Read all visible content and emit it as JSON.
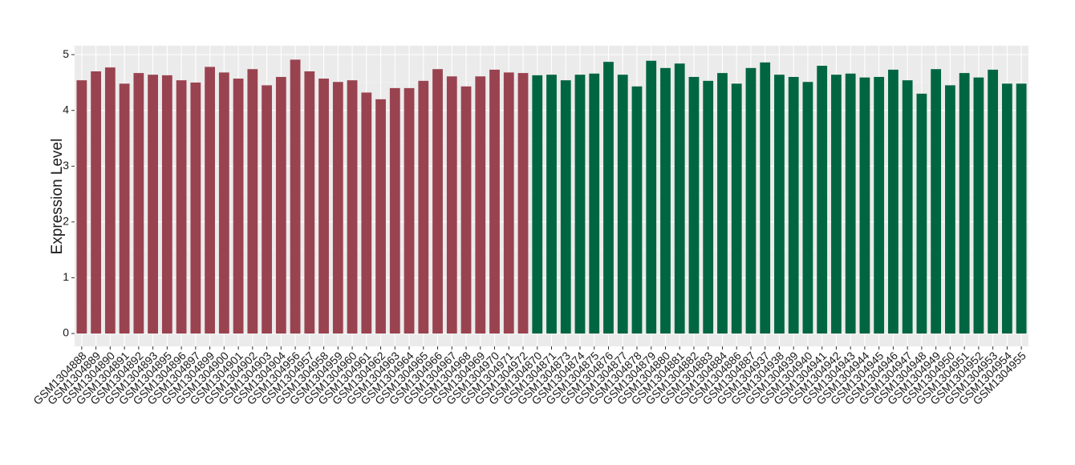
{
  "chart_data": {
    "type": "bar",
    "y_label": "Expression Level",
    "categories": [
      "GSM1304888",
      "GSM1304889",
      "GSM1304890",
      "GSM1304891",
      "GSM1304892",
      "GSM1304893",
      "GSM1304895",
      "GSM1304896",
      "GSM1304897",
      "GSM1304899",
      "GSM1304900",
      "GSM1304901",
      "GSM1304902",
      "GSM1304903",
      "GSM1304904",
      "GSM1304956",
      "GSM1304957",
      "GSM1304958",
      "GSM1304959",
      "GSM1304960",
      "GSM1304961",
      "GSM1304962",
      "GSM1304963",
      "GSM1304964",
      "GSM1304965",
      "GSM1304966",
      "GSM1304967",
      "GSM1304968",
      "GSM1304969",
      "GSM1304970",
      "GSM1304971",
      "GSM1304972",
      "GSM1304870",
      "GSM1304871",
      "GSM1304873",
      "GSM1304874",
      "GSM1304875",
      "GSM1304876",
      "GSM1304877",
      "GSM1304878",
      "GSM1304879",
      "GSM1304880",
      "GSM1304881",
      "GSM1304882",
      "GSM1304883",
      "GSM1304884",
      "GSM1304886",
      "GSM1304887",
      "GSM1304937",
      "GSM1304938",
      "GSM1304939",
      "GSM1304940",
      "GSM1304941",
      "GSM1304942",
      "GSM1304943",
      "GSM1304944",
      "GSM1304945",
      "GSM1304946",
      "GSM1304947",
      "GSM1304948",
      "GSM1304949",
      "GSM1304950",
      "GSM1304951",
      "GSM1304952",
      "GSM1304953",
      "GSM1304954",
      "GSM1304955"
    ],
    "values": [
      4.54,
      4.7,
      4.77,
      4.48,
      4.67,
      4.64,
      4.63,
      4.54,
      4.5,
      4.78,
      4.68,
      4.57,
      4.74,
      4.45,
      4.6,
      4.91,
      4.7,
      4.57,
      4.51,
      4.54,
      4.32,
      4.2,
      4.4,
      4.4,
      4.53,
      4.74,
      4.61,
      4.43,
      4.61,
      4.73,
      4.68,
      4.67,
      4.63,
      4.64,
      4.54,
      4.64,
      4.66,
      4.87,
      4.64,
      4.43,
      4.89,
      4.76,
      4.84,
      4.6,
      4.53,
      4.67,
      4.48,
      4.76,
      4.86,
      4.64,
      4.6,
      4.51,
      4.8,
      4.64,
      4.66,
      4.59,
      4.6,
      4.73,
      4.54,
      4.3,
      4.74,
      4.45,
      4.67,
      4.59,
      4.73,
      4.48,
      4.48
    ],
    "colors": [
      "#9a4350",
      "#9a4350",
      "#9a4350",
      "#9a4350",
      "#9a4350",
      "#9a4350",
      "#9a4350",
      "#9a4350",
      "#9a4350",
      "#9a4350",
      "#9a4350",
      "#9a4350",
      "#9a4350",
      "#9a4350",
      "#9a4350",
      "#9a4350",
      "#9a4350",
      "#9a4350",
      "#9a4350",
      "#9a4350",
      "#9a4350",
      "#9a4350",
      "#9a4350",
      "#9a4350",
      "#9a4350",
      "#9a4350",
      "#9a4350",
      "#9a4350",
      "#9a4350",
      "#9a4350",
      "#9a4350",
      "#9a4350",
      "#006641",
      "#006641",
      "#006641",
      "#006641",
      "#006641",
      "#006641",
      "#006641",
      "#006641",
      "#006641",
      "#006641",
      "#006641",
      "#006641",
      "#006641",
      "#006641",
      "#006641",
      "#006641",
      "#006641",
      "#006641",
      "#006641",
      "#006641",
      "#006641",
      "#006641",
      "#006641",
      "#006641",
      "#006641",
      "#006641",
      "#006641",
      "#006641",
      "#006641",
      "#006641",
      "#006641",
      "#006641",
      "#006641",
      "#006641",
      "#006641"
    ],
    "ylim": [
      -0.23,
      5.16
    ],
    "yticks": [
      0,
      1,
      2,
      3,
      4,
      5
    ],
    "grid": true
  }
}
